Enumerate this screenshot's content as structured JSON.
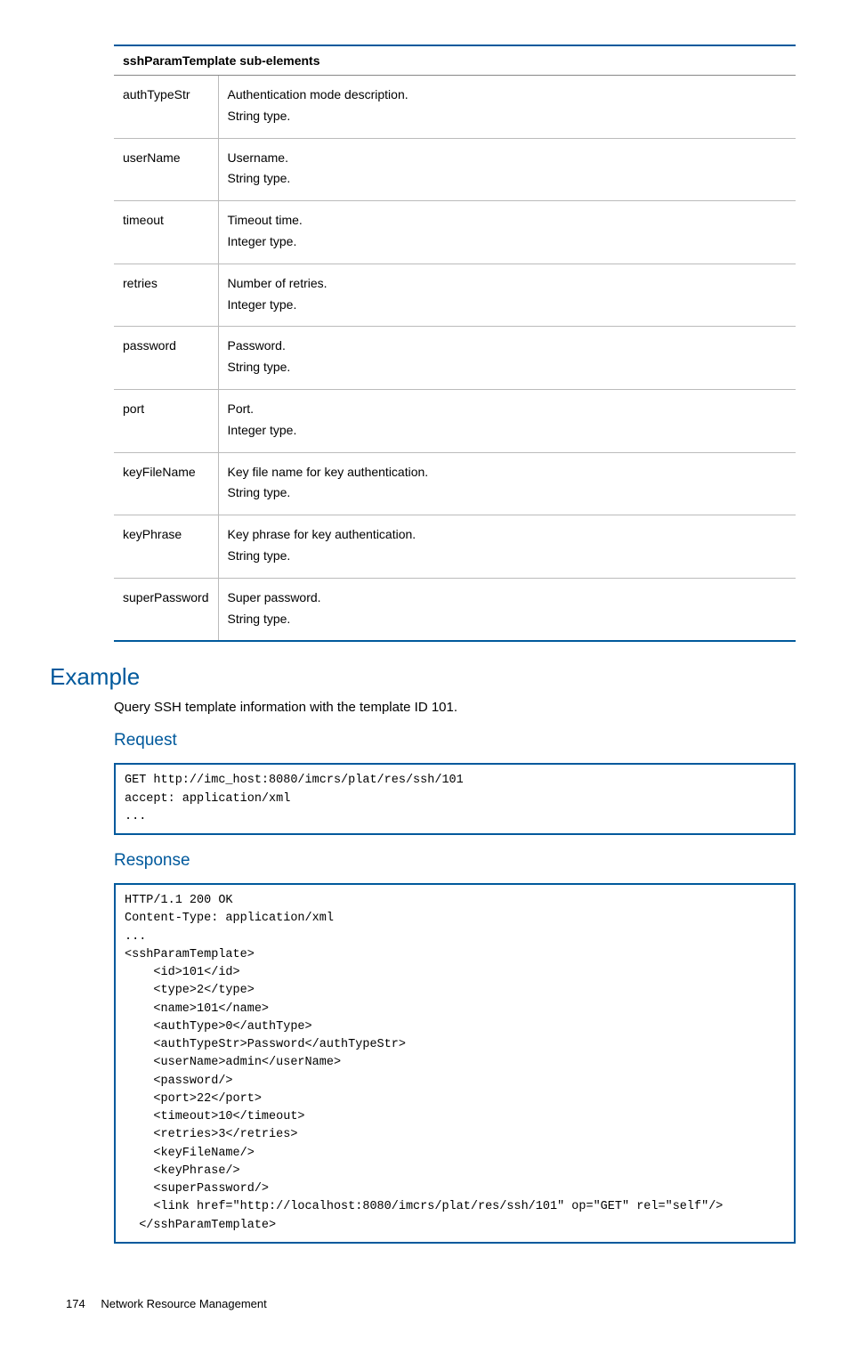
{
  "table": {
    "header": "sshParamTemplate sub-elements",
    "rows": [
      {
        "key": "authTypeStr",
        "desc": "Authentication mode description.\nString type."
      },
      {
        "key": "userName",
        "desc": "Username.\nString type."
      },
      {
        "key": "timeout",
        "desc": "Timeout time.\nInteger type."
      },
      {
        "key": "retries",
        "desc": "Number of retries.\nInteger type."
      },
      {
        "key": "password",
        "desc": "Password.\nString type."
      },
      {
        "key": "port",
        "desc": "Port.\nInteger type."
      },
      {
        "key": "keyFileName",
        "desc": "Key file name for key authentication.\nString type."
      },
      {
        "key": "keyPhrase",
        "desc": "Key phrase for key authentication.\nString type."
      },
      {
        "key": "superPassword",
        "desc": "Super password.\nString type."
      }
    ]
  },
  "example": {
    "heading": "Example",
    "description": "Query SSH template information with the template ID 101.",
    "request_heading": "Request",
    "request_code": "GET http://imc_host:8080/imcrs/plat/res/ssh/101\naccept: application/xml\n...",
    "response_heading": "Response",
    "response_code": "HTTP/1.1 200 OK\nContent-Type: application/xml\n...\n<sshParamTemplate>\n    <id>101</id>\n    <type>2</type>\n    <name>101</name>\n    <authType>0</authType>\n    <authTypeStr>Password</authTypeStr>\n    <userName>admin</userName>\n    <password/>\n    <port>22</port>\n    <timeout>10</timeout>\n    <retries>3</retries>\n    <keyFileName/>\n    <keyPhrase/>\n    <superPassword/>\n    <link href=\"http://localhost:8080/imcrs/plat/res/ssh/101\" op=\"GET\" rel=\"self\"/>\n  </sshParamTemplate>"
  },
  "footer": {
    "page_number": "174",
    "title": "Network Resource Management"
  }
}
